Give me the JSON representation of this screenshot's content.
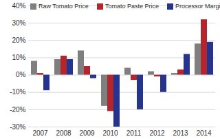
{
  "chart_data": {
    "type": "bar",
    "categories": [
      "2007",
      "2008",
      "2009",
      "2010",
      "2011",
      "2012",
      "2013",
      "2014"
    ],
    "series": [
      {
        "name": "Raw Tomato Price",
        "color": "#7f7f7f",
        "values": [
          8,
          9,
          14,
          -18,
          4,
          2,
          1,
          18
        ]
      },
      {
        "name": "Tomato Paste Price",
        "color": "#b3262b",
        "values": [
          1,
          11,
          5,
          -21,
          -3,
          -1,
          3,
          32
        ]
      },
      {
        "name": "Processor Margin",
        "color": "#27348b",
        "values": [
          -9,
          9,
          -2,
          -30,
          -20,
          -10,
          12,
          19
        ]
      }
    ],
    "ylim": [
      -30,
      40
    ],
    "yticks": [
      {
        "value": -30,
        "label": "-30%"
      },
      {
        "value": -20,
        "label": "-20%"
      },
      {
        "value": -10,
        "label": "-10%"
      },
      {
        "value": 0,
        "label": "0%"
      },
      {
        "value": 10,
        "label": "10%"
      },
      {
        "value": 20,
        "label": "20%"
      },
      {
        "value": 30,
        "label": "30%"
      },
      {
        "value": 40,
        "label": "40%"
      }
    ],
    "grid": true,
    "legend": "top-left"
  }
}
